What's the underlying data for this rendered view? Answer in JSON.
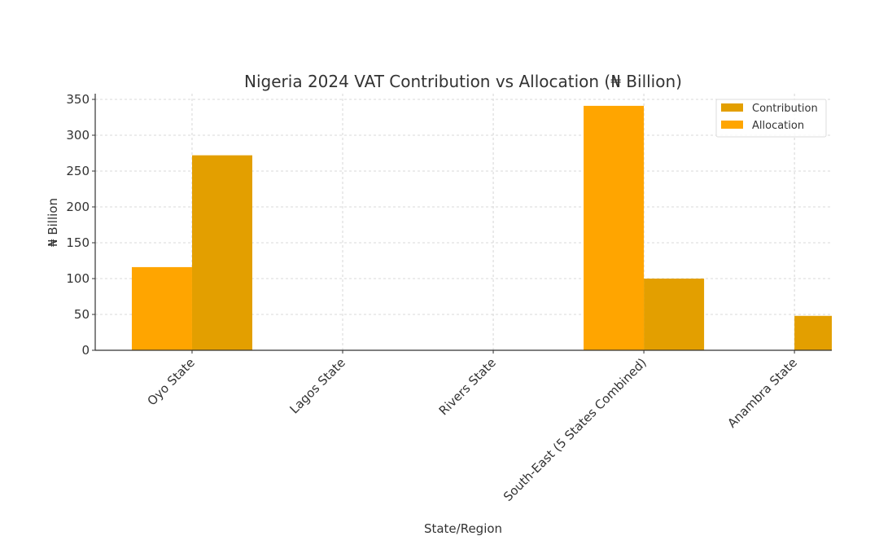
{
  "chart_data": {
    "type": "bar",
    "title": "Nigeria 2024 VAT Contribution vs Allocation (₦ Billion)",
    "xlabel": "State/Region",
    "ylabel": "₦ Billion",
    "categories": [
      "Oyo State",
      "Lagos State",
      "Rivers State",
      "South-East (5 States Combined)",
      "Anambra State"
    ],
    "series": [
      {
        "name": "Contribution",
        "color": "#e39f00",
        "values": [
          272,
          null,
          null,
          100,
          48
        ]
      },
      {
        "name": "Allocation",
        "color": "#ffa500",
        "values": [
          116,
          null,
          null,
          341,
          null
        ]
      }
    ],
    "ylim": [
      0,
      360
    ],
    "yticks": [
      0,
      50,
      100,
      150,
      200,
      250,
      300,
      350
    ],
    "grid": true,
    "legend_position": "top-right"
  }
}
